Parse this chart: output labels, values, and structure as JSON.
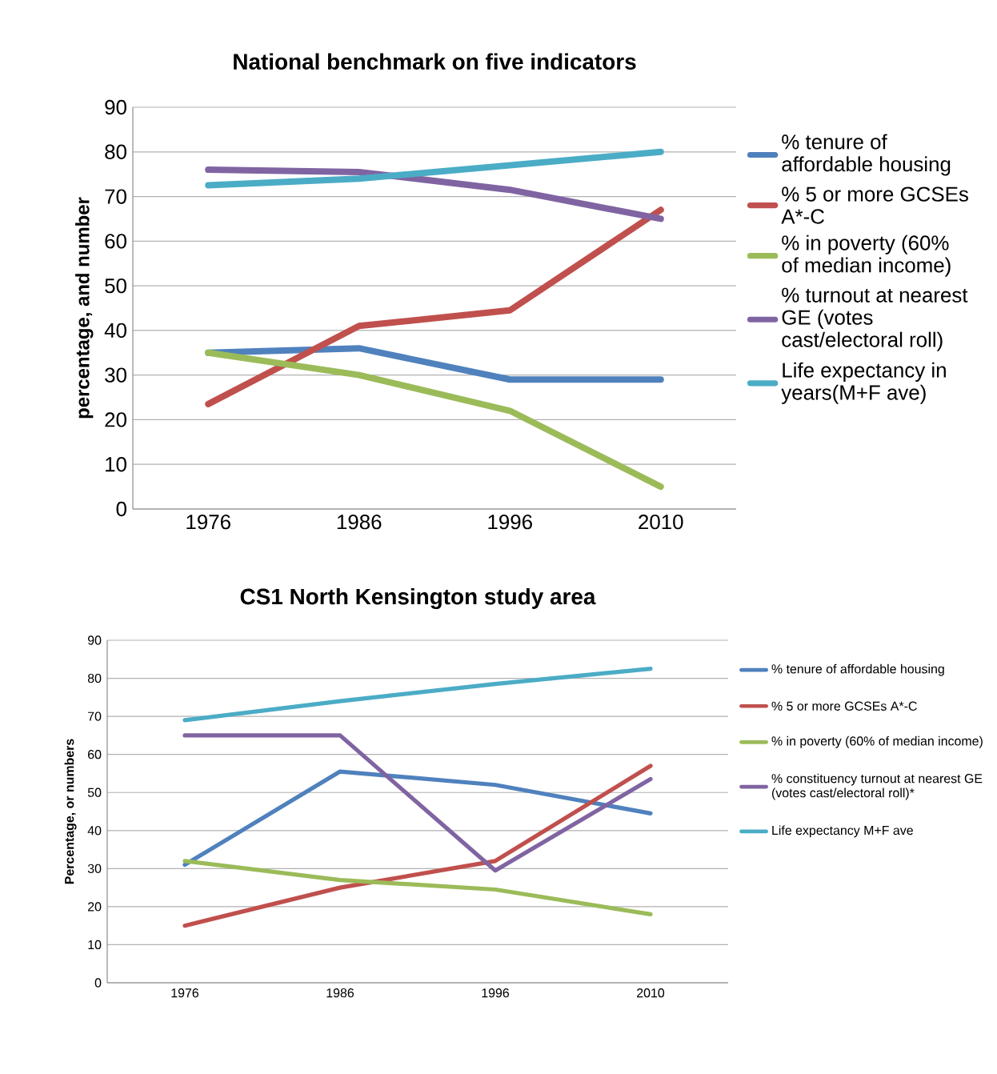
{
  "chart_data": [
    {
      "type": "line",
      "title": "National benchmark on five indicators",
      "ylabel": "percentage, and number",
      "categories": [
        "1976",
        "1986",
        "1996",
        "2010"
      ],
      "ylim": [
        0,
        90
      ],
      "yticks": [
        0,
        10,
        20,
        30,
        40,
        50,
        60,
        70,
        80,
        90
      ],
      "grid": "y",
      "legend": "right",
      "series": [
        {
          "name": "% tenure of affordable housing",
          "color": "#4f81bd",
          "values": [
            35,
            36,
            29,
            29
          ]
        },
        {
          "name": "% 5 or more GCSEs A*-C",
          "color": "#c0504d",
          "values": [
            23.5,
            41,
            44.5,
            67
          ]
        },
        {
          "name": "% in poverty (60% of median income)",
          "color": "#9bbb59",
          "values": [
            35,
            30,
            22,
            5
          ]
        },
        {
          "name": "% turnout at nearest GE (votes cast/electoral roll)",
          "color": "#8064a2",
          "values": [
            76,
            75.5,
            71.5,
            65
          ]
        },
        {
          "name": "Life expectancy in years(M+F ave)",
          "color": "#4bacc6",
          "values": [
            72.5,
            74,
            77,
            80
          ]
        }
      ]
    },
    {
      "type": "line",
      "title": "CS1 North Kensington study area",
      "ylabel": "Percentage, or numbers",
      "categories": [
        "1976",
        "1986",
        "1996",
        "2010"
      ],
      "ylim": [
        0,
        90
      ],
      "yticks": [
        0,
        10,
        20,
        30,
        40,
        50,
        60,
        70,
        80,
        90
      ],
      "grid": "y",
      "legend": "right",
      "series": [
        {
          "name": "% tenure of affordable housing",
          "color": "#4f81bd",
          "values": [
            31,
            55.5,
            52,
            44.5
          ]
        },
        {
          "name": "% 5 or more GCSEs A*-C",
          "color": "#c0504d",
          "values": [
            15,
            25,
            32,
            57
          ]
        },
        {
          "name": "% in poverty (60% of median income)",
          "color": "#9bbb59",
          "values": [
            32,
            27,
            24.5,
            18
          ]
        },
        {
          "name": "% constituency turnout at nearest GE (votes cast/electoral roll)*",
          "color": "#8064a2",
          "values": [
            65,
            65,
            29.5,
            53.5
          ]
        },
        {
          "name": "Life expectancy M+F ave",
          "color": "#4bacc6",
          "values": [
            69,
            74,
            78.5,
            82.5
          ]
        }
      ]
    }
  ]
}
